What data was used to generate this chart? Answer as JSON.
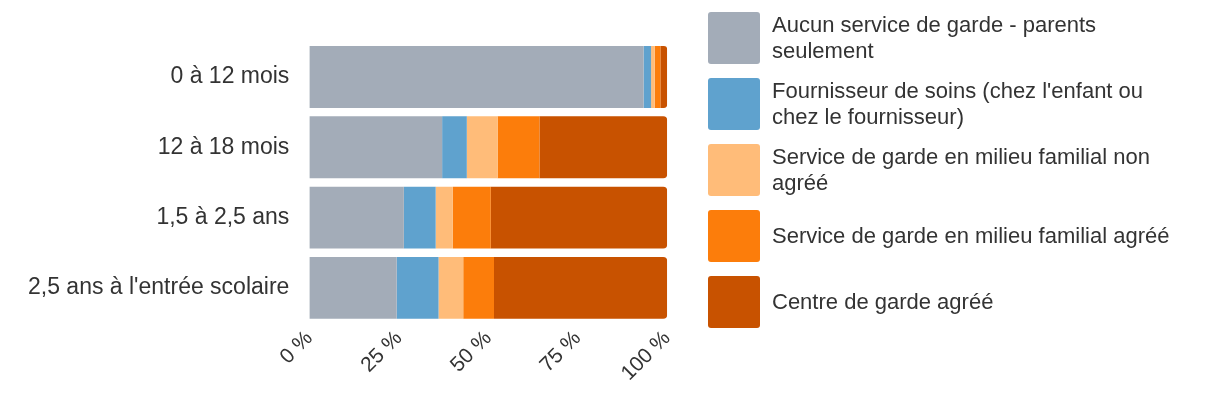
{
  "chart_data": {
    "type": "bar",
    "orientation": "horizontal",
    "stacked": true,
    "categories": [
      "0 à 12 mois",
      "12 à 18 mois",
      "1,5 à 2,5 ans",
      "2,5 ans à l'entrée scolaire"
    ],
    "series": [
      {
        "name": "Aucun service de garde - parents seulement",
        "color": "#a3acb8",
        "values": [
          93.4,
          37.1,
          26.4,
          24.4
        ]
      },
      {
        "name": "Fournisseur de soins (chez l'enfant ou chez le fournisseur)",
        "color": "#5fa2ce",
        "values": [
          2.1,
          6.9,
          8.9,
          11.7
        ]
      },
      {
        "name": "Service de garde en milieu familial non agréé",
        "color": "#ffbc79",
        "values": [
          1.0,
          8.6,
          4.8,
          6.9
        ]
      },
      {
        "name": "Service de garde en milieu familial agréé",
        "color": "#fc7d0b",
        "values": [
          1.6,
          11.7,
          10.6,
          8.6
        ]
      },
      {
        "name": "Centre de garde agréé",
        "color": "#c85200",
        "values": [
          1.9,
          35.7,
          49.3,
          48.4
        ]
      }
    ],
    "xlim": [
      0,
      100
    ],
    "xticks": [
      {
        "value": 0,
        "label": "0 %"
      },
      {
        "value": 25,
        "label": "25 %"
      },
      {
        "value": 50,
        "label": "50 %"
      },
      {
        "value": 75,
        "label": "75 %"
      },
      {
        "value": 100,
        "label": "100 %"
      }
    ],
    "grid": false,
    "legend": "right"
  }
}
